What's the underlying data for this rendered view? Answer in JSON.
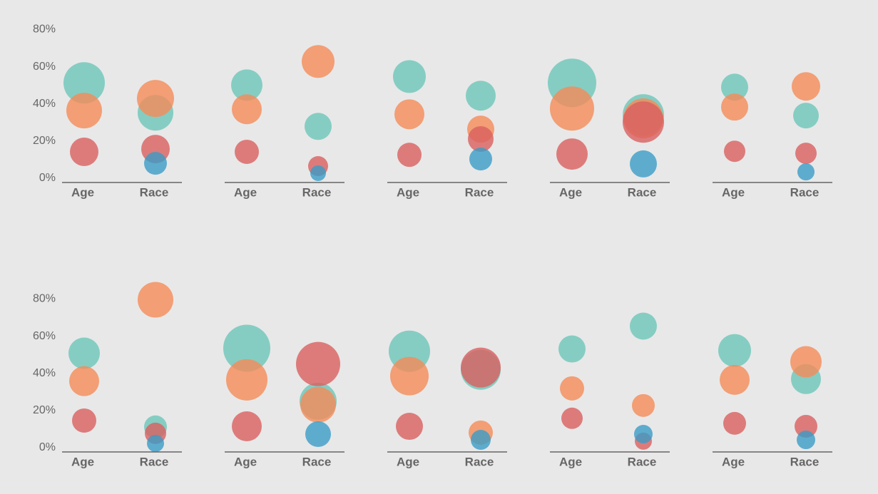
{
  "chart_data": [
    {
      "type": "bubble",
      "categories": [
        "Age",
        "Race"
      ],
      "ylim": [
        -2.3,
        84
      ],
      "yticks": [
        {
          "value": 0,
          "label": "0%"
        },
        {
          "value": 20,
          "label": "20%"
        },
        {
          "value": 40,
          "label": "40%"
        },
        {
          "value": 60,
          "label": "60%"
        },
        {
          "value": 80,
          "label": "80%"
        }
      ],
      "series": [
        {
          "color": "#6cc5b8",
          "values": [
            51.3,
            35.2
          ],
          "sizes": [
            29,
            25
          ]
        },
        {
          "color": "#f58b57",
          "values": [
            36.4,
            42.9
          ],
          "sizes": [
            25,
            26
          ]
        },
        {
          "color": "#d95f5f",
          "values": [
            14.2,
            15.7
          ],
          "sizes": [
            20,
            20
          ]
        },
        {
          "color": "#3a9cc7",
          "values": [
            null,
            8.0
          ],
          "sizes": [
            null,
            16
          ]
        }
      ]
    },
    {
      "type": "bubble",
      "categories": [
        "Age",
        "Race"
      ],
      "ylim": [
        -2.3,
        84
      ],
      "series": [
        {
          "color": "#6cc5b8",
          "values": [
            50.1,
            27.9
          ],
          "sizes": [
            22,
            19
          ]
        },
        {
          "color": "#f58b57",
          "values": [
            37.1,
            62.8
          ],
          "sizes": [
            21,
            23
          ]
        },
        {
          "color": "#d95f5f",
          "values": [
            14.2,
            6.5
          ],
          "sizes": [
            17,
            14
          ]
        },
        {
          "color": "#3a9cc7",
          "values": [
            null,
            2.7
          ],
          "sizes": [
            null,
            11
          ]
        }
      ]
    },
    {
      "type": "bubble",
      "categories": [
        "Age",
        "Race"
      ],
      "ylim": [
        -2.3,
        84
      ],
      "series": [
        {
          "color": "#6cc5b8",
          "values": [
            54.7,
            44.4
          ],
          "sizes": [
            23,
            21
          ]
        },
        {
          "color": "#f58b57",
          "values": [
            34.4,
            26.4
          ],
          "sizes": [
            21,
            19
          ]
        },
        {
          "color": "#d95f5f",
          "values": [
            12.6,
            21.1
          ],
          "sizes": [
            17,
            18
          ]
        },
        {
          "color": "#3a9cc7",
          "values": [
            null,
            10.3
          ],
          "sizes": [
            null,
            16
          ]
        }
      ]
    },
    {
      "type": "bubble",
      "categories": [
        "Age",
        "Race"
      ],
      "ylim": [
        -2.3,
        84
      ],
      "series": [
        {
          "color": "#6cc5b8",
          "values": [
            51.3,
            34.1
          ],
          "sizes": [
            34,
            29
          ]
        },
        {
          "color": "#f58b57",
          "values": [
            37.5,
            32.2
          ],
          "sizes": [
            31,
            28
          ]
        },
        {
          "color": "#d95f5f",
          "values": [
            13.0,
            30.2
          ],
          "sizes": [
            22,
            29
          ]
        },
        {
          "color": "#3a9cc7",
          "values": [
            null,
            7.7
          ],
          "sizes": [
            null,
            19
          ]
        }
      ]
    },
    {
      "type": "bubble",
      "categories": [
        "Age",
        "Race"
      ],
      "ylim": [
        -2.3,
        84
      ],
      "series": [
        {
          "color": "#6cc5b8",
          "values": [
            49.0,
            33.7
          ],
          "sizes": [
            19,
            18
          ]
        },
        {
          "color": "#f58b57",
          "values": [
            38.3,
            49.4
          ],
          "sizes": [
            19,
            20
          ]
        },
        {
          "color": "#d95f5f",
          "values": [
            14.5,
            13.4
          ],
          "sizes": [
            15,
            15
          ]
        },
        {
          "color": "#3a9cc7",
          "values": [
            null,
            3.4
          ],
          "sizes": [
            null,
            12
          ]
        }
      ]
    },
    {
      "type": "bubble",
      "categories": [
        "Age",
        "Race"
      ],
      "ylim": [
        -2.3,
        84
      ],
      "yticks": [
        {
          "value": 0,
          "label": "0%"
        },
        {
          "value": 20,
          "label": "20%"
        },
        {
          "value": 40,
          "label": "40%"
        },
        {
          "value": 60,
          "label": "60%"
        },
        {
          "value": 80,
          "label": "80%"
        }
      ],
      "series": [
        {
          "color": "#6cc5b8",
          "values": [
            50.8,
            11.2
          ],
          "sizes": [
            22,
            16
          ]
        },
        {
          "color": "#f58b57",
          "values": [
            35.8,
            79.6
          ],
          "sizes": [
            21,
            25
          ]
        },
        {
          "color": "#d95f5f",
          "values": [
            14.6,
            7.7
          ],
          "sizes": [
            17,
            15
          ]
        },
        {
          "color": "#3a9cc7",
          "values": [
            null,
            2.3
          ],
          "sizes": [
            null,
            12
          ]
        }
      ]
    },
    {
      "type": "bubble",
      "categories": [
        "Age",
        "Race"
      ],
      "ylim": [
        -2.3,
        84
      ],
      "series": [
        {
          "color": "#6cc5b8",
          "values": [
            53.5,
            25.0
          ],
          "sizes": [
            33,
            26
          ]
        },
        {
          "color": "#f58b57",
          "values": [
            36.5,
            23.1
          ],
          "sizes": [
            29,
            25
          ]
        },
        {
          "color": "#d95f5f",
          "values": [
            11.5,
            45.0
          ],
          "sizes": [
            21,
            31
          ]
        },
        {
          "color": "#3a9cc7",
          "values": [
            null,
            7.3
          ],
          "sizes": [
            null,
            18
          ]
        }
      ]
    },
    {
      "type": "bubble",
      "categories": [
        "Age",
        "Race"
      ],
      "ylim": [
        -2.3,
        84
      ],
      "series": [
        {
          "color": "#6cc5b8",
          "values": [
            51.9,
            41.9
          ],
          "sizes": [
            29,
            28
          ]
        },
        {
          "color": "#f58b57",
          "values": [
            38.5,
            8.1
          ],
          "sizes": [
            27,
            17
          ]
        },
        {
          "color": "#d95f5f",
          "values": [
            11.5,
            43.1
          ],
          "sizes": [
            19,
            28
          ]
        },
        {
          "color": "#3a9cc7",
          "values": [
            null,
            4.2
          ],
          "sizes": [
            null,
            14
          ]
        }
      ]
    },
    {
      "type": "bubble",
      "categories": [
        "Age",
        "Race"
      ],
      "ylim": [
        -2.3,
        84
      ],
      "series": [
        {
          "color": "#6cc5b8",
          "values": [
            53.1,
            65.4
          ],
          "sizes": [
            19,
            19
          ]
        },
        {
          "color": "#f58b57",
          "values": [
            31.9,
            22.7
          ],
          "sizes": [
            17,
            16
          ]
        },
        {
          "color": "#d95f5f",
          "values": [
            15.8,
            3.5
          ],
          "sizes": [
            15,
            12
          ]
        },
        {
          "color": "#3a9cc7",
          "values": [
            null,
            7.3
          ],
          "sizes": [
            null,
            13
          ]
        }
      ]
    },
    {
      "type": "bubble",
      "categories": [
        "Age",
        "Race"
      ],
      "ylim": [
        -2.3,
        84
      ],
      "series": [
        {
          "color": "#6cc5b8",
          "values": [
            52.3,
            36.9
          ],
          "sizes": [
            23,
            21
          ]
        },
        {
          "color": "#f58b57",
          "values": [
            36.5,
            46.2
          ],
          "sizes": [
            21,
            22
          ]
        },
        {
          "color": "#d95f5f",
          "values": [
            13.1,
            11.5
          ],
          "sizes": [
            16,
            16
          ]
        },
        {
          "color": "#3a9cc7",
          "values": [
            null,
            4.2
          ],
          "sizes": [
            null,
            13
          ]
        }
      ]
    }
  ]
}
